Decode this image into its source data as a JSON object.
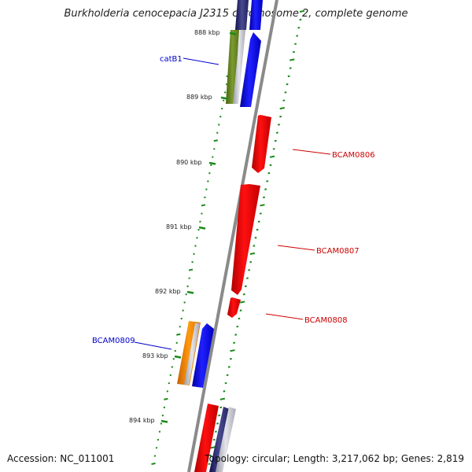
{
  "title": "Burkholderia cenocepacia J2315 chromosome 2, complete genome",
  "footer": {
    "accession": "Accession: NC_011001",
    "summary": "Topology: circular; Length: 3,217,062 bp; Genes: 2,819"
  },
  "colors": {
    "forward_gene": "#ff0000",
    "reverse_gene": "#0000ff",
    "gene_label_forward": "#cc0000",
    "gene_label_reverse": "#0000cc",
    "backbone": "#909090",
    "gc_dashes": "#1a8a1a",
    "catB1_gene": "#6b8e23",
    "BCAM0809_gene": "#ff8c00"
  },
  "ticks": [
    {
      "label": "888 kbp"
    },
    {
      "label": "889 kbp"
    },
    {
      "label": "890 kbp"
    },
    {
      "label": "891 kbp"
    },
    {
      "label": "892 kbp"
    },
    {
      "label": "893 kbp"
    },
    {
      "label": "894 kbp"
    }
  ],
  "genes": [
    {
      "name": "catB1",
      "strand": "reverse"
    },
    {
      "name": "BCAM0806",
      "strand": "forward"
    },
    {
      "name": "BCAM0807",
      "strand": "forward"
    },
    {
      "name": "BCAM0808",
      "strand": "forward"
    },
    {
      "name": "BCAM0809",
      "strand": "reverse"
    }
  ]
}
